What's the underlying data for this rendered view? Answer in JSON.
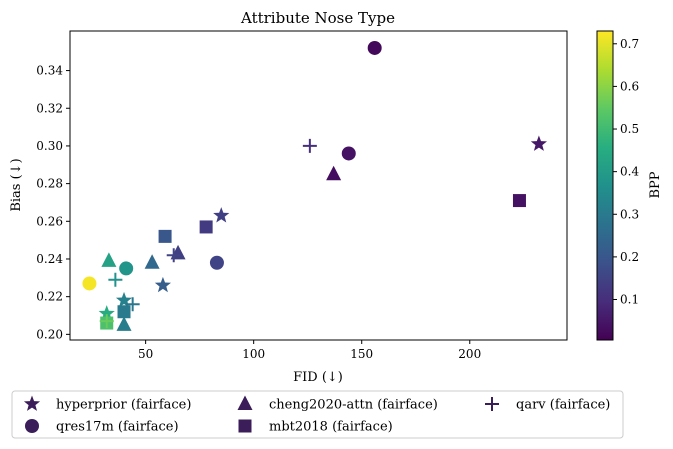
{
  "chart_data": {
    "type": "scatter",
    "title": "Attribute Nose Type",
    "xlabel": "FID (↓)",
    "ylabel": "Bias (↓)",
    "xlim": [
      15,
      245
    ],
    "ylim": [
      0.197,
      0.361
    ],
    "xticks": [
      50,
      100,
      150,
      200
    ],
    "yticks": [
      0.2,
      0.22,
      0.24,
      0.26,
      0.28,
      0.3,
      0.32,
      0.34
    ],
    "xtick_labels": [
      "50",
      "100",
      "150",
      "200"
    ],
    "ytick_labels": [
      "0.20",
      "0.22",
      "0.24",
      "0.26",
      "0.28",
      "0.30",
      "0.32",
      "0.34"
    ],
    "colorbar": {
      "label": "BPP",
      "colormap": "viridis",
      "range": [
        0.005,
        0.73
      ],
      "ticks": [
        0.1,
        0.2,
        0.3,
        0.4,
        0.5,
        0.6,
        0.7
      ],
      "tick_labels": [
        "0.1",
        "0.2",
        "0.3",
        "0.4",
        "0.5",
        "0.6",
        "0.7"
      ]
    },
    "grid": false,
    "legend_position": "below",
    "series": [
      {
        "name": "hyperprior (fairface)",
        "marker": "star",
        "points": [
          {
            "x": 232,
            "y": 0.301,
            "bpp": 0.05
          },
          {
            "x": 85,
            "y": 0.263,
            "bpp": 0.14
          },
          {
            "x": 58,
            "y": 0.226,
            "bpp": 0.22
          },
          {
            "x": 40,
            "y": 0.218,
            "bpp": 0.32
          },
          {
            "x": 32,
            "y": 0.211,
            "bpp": 0.45
          }
        ]
      },
      {
        "name": "qres17m (fairface)",
        "marker": "circle",
        "points": [
          {
            "x": 156,
            "y": 0.352,
            "bpp": 0.02
          },
          {
            "x": 144,
            "y": 0.296,
            "bpp": 0.04
          },
          {
            "x": 83,
            "y": 0.238,
            "bpp": 0.15
          },
          {
            "x": 41,
            "y": 0.235,
            "bpp": 0.38
          },
          {
            "x": 24,
            "y": 0.227,
            "bpp": 0.72
          }
        ]
      },
      {
        "name": "cheng2020-attn (fairface)",
        "marker": "triangle",
        "points": [
          {
            "x": 137,
            "y": 0.285,
            "bpp": 0.03
          },
          {
            "x": 65,
            "y": 0.243,
            "bpp": 0.14
          },
          {
            "x": 53,
            "y": 0.238,
            "bpp": 0.25
          },
          {
            "x": 33,
            "y": 0.239,
            "bpp": 0.42
          },
          {
            "x": 40,
            "y": 0.205,
            "bpp": 0.31
          }
        ]
      },
      {
        "name": "mbt2018 (fairface)",
        "marker": "square",
        "points": [
          {
            "x": 223,
            "y": 0.271,
            "bpp": 0.04
          },
          {
            "x": 78,
            "y": 0.257,
            "bpp": 0.13
          },
          {
            "x": 59,
            "y": 0.252,
            "bpp": 0.2
          },
          {
            "x": 40,
            "y": 0.212,
            "bpp": 0.3
          },
          {
            "x": 32,
            "y": 0.206,
            "bpp": 0.52
          }
        ]
      },
      {
        "name": "qarv (fairface)",
        "marker": "plus",
        "points": [
          {
            "x": 126,
            "y": 0.3,
            "bpp": 0.1
          },
          {
            "x": 63,
            "y": 0.242,
            "bpp": 0.15
          },
          {
            "x": 44,
            "y": 0.216,
            "bpp": 0.29
          },
          {
            "x": 36,
            "y": 0.229,
            "bpp": 0.37
          },
          {
            "x": 32,
            "y": 0.207,
            "bpp": 0.56
          }
        ]
      }
    ]
  },
  "legend_color": "#3b1d5a"
}
